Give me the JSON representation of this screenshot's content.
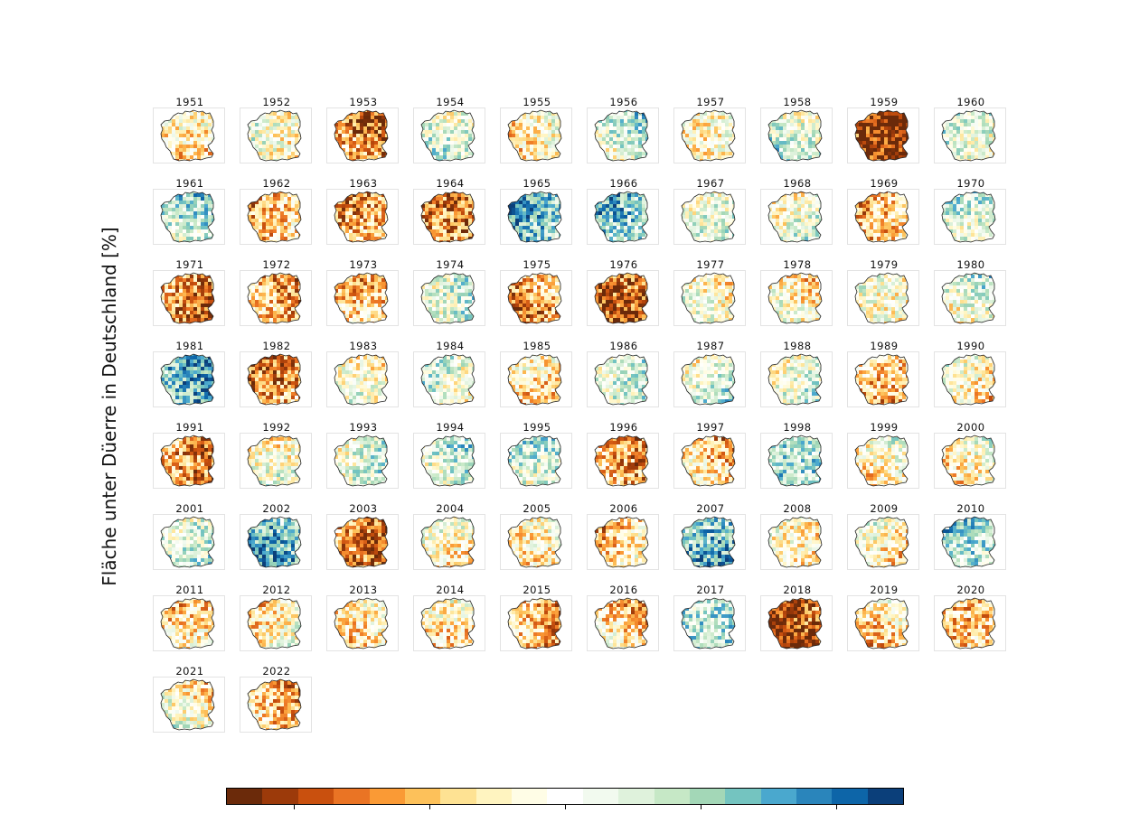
{
  "figure": {
    "ylabel": "Fläche unter Düerre in Deutschland [%]"
  },
  "colors": {
    "dry_extreme": "#6b2a0a",
    "dry": "#e0741c",
    "neutral": "#ffffff",
    "wet": "#4aa3c8",
    "wet_extreme": "#0b3f7a",
    "outline": "#222222"
  },
  "colorbar": {
    "colors": [
      "#6b2a0a",
      "#9c3a0a",
      "#c9500e",
      "#ea7424",
      "#fa9a35",
      "#fdc15a",
      "#fee293",
      "#fff4c0",
      "#fffde6",
      "#ffffff",
      "#f2faef",
      "#dff2dc",
      "#c6e8c6",
      "#a3d7b7",
      "#74c4c0",
      "#4aa8ce",
      "#2a85bb",
      "#0d65a8",
      "#0b3f7a"
    ],
    "tick_count": 5
  },
  "panels": [
    {
      "year": "1951",
      "index": 0.2
    },
    {
      "year": "1952",
      "index": 0.05
    },
    {
      "year": "1953",
      "index": 0.6
    },
    {
      "year": "1954",
      "index": -0.15
    },
    {
      "year": "1955",
      "index": 0.15
    },
    {
      "year": "1956",
      "index": -0.2
    },
    {
      "year": "1957",
      "index": 0.1
    },
    {
      "year": "1958",
      "index": -0.15
    },
    {
      "year": "1959",
      "index": 0.95
    },
    {
      "year": "1960",
      "index": -0.1
    },
    {
      "year": "1961",
      "index": -0.3
    },
    {
      "year": "1962",
      "index": 0.35
    },
    {
      "year": "1963",
      "index": 0.45
    },
    {
      "year": "1964",
      "index": 0.6
    },
    {
      "year": "1965",
      "index": -0.55
    },
    {
      "year": "1966",
      "index": -0.45
    },
    {
      "year": "1967",
      "index": -0.1
    },
    {
      "year": "1968",
      "index": -0.05
    },
    {
      "year": "1969",
      "index": 0.35
    },
    {
      "year": "1970",
      "index": -0.15
    },
    {
      "year": "1971",
      "index": 0.6
    },
    {
      "year": "1972",
      "index": 0.45
    },
    {
      "year": "1973",
      "index": 0.35
    },
    {
      "year": "1974",
      "index": -0.15
    },
    {
      "year": "1975",
      "index": 0.5
    },
    {
      "year": "1976",
      "index": 0.75
    },
    {
      "year": "1977",
      "index": 0.05
    },
    {
      "year": "1978",
      "index": 0.15
    },
    {
      "year": "1979",
      "index": 0.05
    },
    {
      "year": "1980",
      "index": -0.1
    },
    {
      "year": "1981",
      "index": -0.65
    },
    {
      "year": "1982",
      "index": 0.55
    },
    {
      "year": "1983",
      "index": 0.05
    },
    {
      "year": "1984",
      "index": -0.05
    },
    {
      "year": "1985",
      "index": 0.25
    },
    {
      "year": "1986",
      "index": -0.15
    },
    {
      "year": "1987",
      "index": -0.15
    },
    {
      "year": "1988",
      "index": -0.1
    },
    {
      "year": "1989",
      "index": 0.4
    },
    {
      "year": "1990",
      "index": 0.15
    },
    {
      "year": "1991",
      "index": 0.55
    },
    {
      "year": "1992",
      "index": 0.02
    },
    {
      "year": "1993",
      "index": -0.15
    },
    {
      "year": "1994",
      "index": -0.2
    },
    {
      "year": "1995",
      "index": -0.2
    },
    {
      "year": "1996",
      "index": 0.5
    },
    {
      "year": "1997",
      "index": 0.3
    },
    {
      "year": "1998",
      "index": -0.35
    },
    {
      "year": "1999",
      "index": 0.1
    },
    {
      "year": "2000",
      "index": 0.1
    },
    {
      "year": "2001",
      "index": -0.2
    },
    {
      "year": "2002",
      "index": -0.6
    },
    {
      "year": "2003",
      "index": 0.65
    },
    {
      "year": "2004",
      "index": 0.1
    },
    {
      "year": "2005",
      "index": 0.15
    },
    {
      "year": "2006",
      "index": 0.25
    },
    {
      "year": "2007",
      "index": -0.55
    },
    {
      "year": "2008",
      "index": 0.15
    },
    {
      "year": "2009",
      "index": 0.15
    },
    {
      "year": "2010",
      "index": -0.35
    },
    {
      "year": "2011",
      "index": 0.25
    },
    {
      "year": "2012",
      "index": 0.15
    },
    {
      "year": "2013",
      "index": 0.2
    },
    {
      "year": "2014",
      "index": 0.2
    },
    {
      "year": "2015",
      "index": 0.4
    },
    {
      "year": "2016",
      "index": 0.3
    },
    {
      "year": "2017",
      "index": -0.35
    },
    {
      "year": "2018",
      "index": 0.8
    },
    {
      "year": "2019",
      "index": 0.25
    },
    {
      "year": "2020",
      "index": 0.35
    },
    {
      "year": "2021",
      "index": 0.1
    },
    {
      "year": "2022",
      "index": 0.4
    }
  ]
}
